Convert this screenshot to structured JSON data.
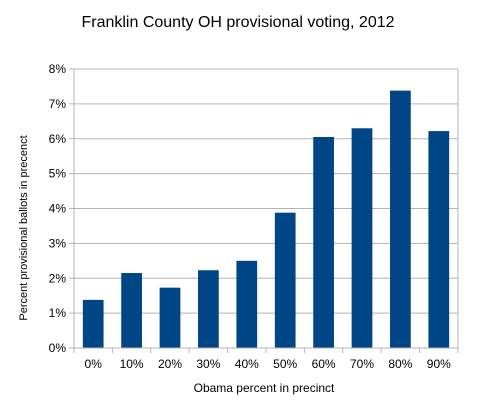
{
  "chart_data": {
    "type": "bar",
    "title": "Franklin County OH provisional voting, 2012",
    "xlabel": "Obama percent in precinct",
    "ylabel": "Percent provisional ballots in precenct",
    "categories": [
      "0%",
      "10%",
      "20%",
      "30%",
      "40%",
      "50%",
      "60%",
      "70%",
      "80%",
      "90%"
    ],
    "values": [
      1.38,
      2.15,
      1.73,
      2.23,
      2.5,
      3.88,
      6.05,
      6.3,
      7.38,
      6.22
    ],
    "ylim": [
      0,
      8
    ],
    "yticks": [
      0,
      1,
      2,
      3,
      4,
      5,
      6,
      7,
      8
    ],
    "ytick_labels": [
      "0%",
      "1%",
      "2%",
      "3%",
      "4%",
      "5%",
      "6%",
      "7%",
      "8%"
    ],
    "grid": true,
    "bar_color": "#004586",
    "grid_color": "#b3b3b3",
    "axis_color": "#b3b3b3"
  }
}
